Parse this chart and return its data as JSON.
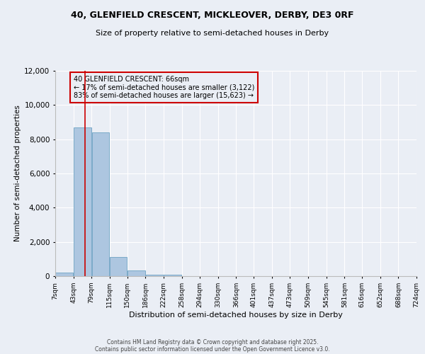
{
  "title_line1": "40, GLENFIELD CRESCENT, MICKLEOVER, DERBY, DE3 0RF",
  "title_line2": "Size of property relative to semi-detached houses in Derby",
  "xlabel": "Distribution of semi-detached houses by size in Derby",
  "ylabel": "Number of semi-detached properties",
  "bar_left_edges": [
    7,
    43,
    79,
    115,
    150,
    186,
    222,
    258,
    294,
    330,
    366,
    401,
    437,
    473,
    509,
    545,
    581,
    616,
    652,
    688
  ],
  "bar_widths": [
    36,
    36,
    36,
    35,
    36,
    36,
    36,
    36,
    36,
    36,
    35,
    36,
    36,
    36,
    36,
    36,
    35,
    36,
    36,
    36
  ],
  "bar_heights": [
    200,
    8700,
    8400,
    1100,
    330,
    100,
    70,
    0,
    0,
    0,
    0,
    0,
    0,
    0,
    0,
    0,
    0,
    0,
    0,
    0
  ],
  "bar_color": "#adc6e0",
  "bar_edgecolor": "#7aaac8",
  "xtick_labels": [
    "7sqm",
    "43sqm",
    "79sqm",
    "115sqm",
    "150sqm",
    "186sqm",
    "222sqm",
    "258sqm",
    "294sqm",
    "330sqm",
    "366sqm",
    "401sqm",
    "437sqm",
    "473sqm",
    "509sqm",
    "545sqm",
    "581sqm",
    "616sqm",
    "652sqm",
    "688sqm",
    "724sqm"
  ],
  "xtick_positions": [
    7,
    43,
    79,
    115,
    150,
    186,
    222,
    258,
    294,
    330,
    366,
    401,
    437,
    473,
    509,
    545,
    581,
    616,
    652,
    688,
    724
  ],
  "ylim": [
    0,
    12000
  ],
  "yticks": [
    0,
    2000,
    4000,
    6000,
    8000,
    10000,
    12000
  ],
  "property_size": 66,
  "red_line_color": "#cc0000",
  "annotation_text": "40 GLENFIELD CRESCENT: 66sqm\n← 17% of semi-detached houses are smaller (3,122)\n83% of semi-detached houses are larger (15,623) →",
  "annotation_box_color": "#cc0000",
  "bg_color": "#eaeef5",
  "grid_color": "#ffffff",
  "footer_line1": "Contains HM Land Registry data © Crown copyright and database right 2025.",
  "footer_line2": "Contains public sector information licensed under the Open Government Licence v3.0."
}
